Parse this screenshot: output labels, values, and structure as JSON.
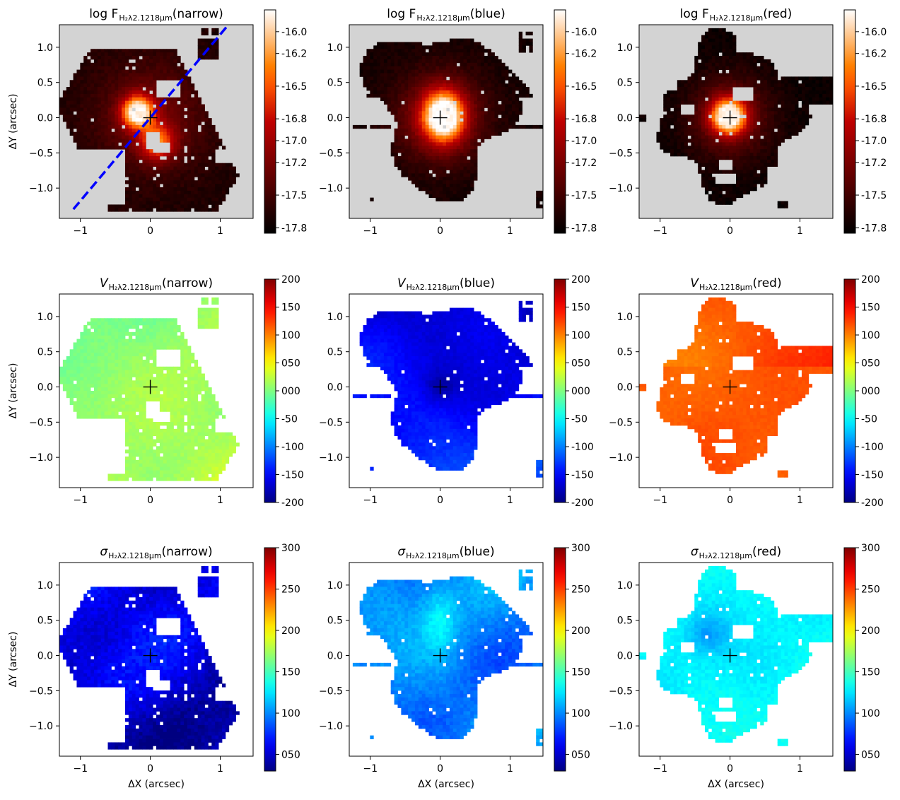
{
  "figure": {
    "xlabel": "ΔX (arcsec)",
    "ylabel": "ΔY (arcsec)",
    "x_range": [
      -1.3,
      1.47
    ],
    "y_range": [
      -1.43,
      1.32
    ],
    "x_ticks": [
      -1,
      0,
      1
    ],
    "y_ticks": [
      -1.0,
      -0.5,
      0.0,
      0.5,
      1.0
    ],
    "x_tick_labels": [
      "−1",
      "0",
      "1"
    ],
    "y_tick_labels": [
      "−1.0",
      "−0.5",
      "0.0",
      "0.5",
      "1.0"
    ],
    "masked_color": "#d3d3d3",
    "nucleus_marker": "+"
  },
  "chart_data": [
    {
      "type": "heatmap",
      "row": 0,
      "col": 0,
      "quantity": "flux",
      "component": "narrow",
      "title_prefix": "log F",
      "title_sub": "H₂λ2.1218μm",
      "title_suffix": "(narrow)",
      "colormap": "gist_heat",
      "clim": [
        -17.85,
        -15.8
      ],
      "colorbar_ticks": [
        -16.0,
        -16.2,
        -16.5,
        -16.8,
        -17.0,
        -17.2,
        -17.5,
        -17.8
      ],
      "colorbar_labels": [
        "-16.0",
        "-16.2",
        "-16.5",
        "-16.8",
        "-17.0",
        "-17.2",
        "-17.5",
        "-17.8"
      ],
      "overlay_line": {
        "color": "#0000ff",
        "style": "dashed",
        "from": [
          -1.1,
          -1.3
        ],
        "to": [
          1.1,
          1.3
        ]
      }
    },
    {
      "type": "heatmap",
      "row": 0,
      "col": 1,
      "quantity": "flux",
      "component": "blue",
      "title_prefix": "log F",
      "title_sub": "H₂λ2.1218μm",
      "title_suffix": "(blue)",
      "colormap": "gist_heat",
      "clim": [
        -17.85,
        -15.8
      ],
      "colorbar_ticks": [
        -16.0,
        -16.2,
        -16.5,
        -16.8,
        -17.0,
        -17.2,
        -17.5,
        -17.8
      ],
      "colorbar_labels": [
        "-16.0",
        "-16.2",
        "-16.5",
        "-16.8",
        "-17.0",
        "-17.2",
        "-17.5",
        "-17.8"
      ]
    },
    {
      "type": "heatmap",
      "row": 0,
      "col": 2,
      "quantity": "flux",
      "component": "red",
      "title_prefix": "log F",
      "title_sub": "H₂λ2.1218μm",
      "title_suffix": "(red)",
      "colormap": "gist_heat",
      "clim": [
        -17.85,
        -15.8
      ],
      "colorbar_ticks": [
        -16.0,
        -16.2,
        -16.5,
        -16.8,
        -17.0,
        -17.2,
        -17.5,
        -17.8
      ],
      "colorbar_labels": [
        "-16.0",
        "-16.2",
        "-16.5",
        "-16.8",
        "-17.0",
        "-17.2",
        "-17.5",
        "-17.8"
      ]
    },
    {
      "type": "heatmap",
      "row": 1,
      "col": 0,
      "quantity": "velocity",
      "component": "narrow",
      "title_prefix": "V",
      "title_sub": "H₂λ2.1218μm",
      "title_suffix": "(narrow)",
      "colormap": "jet",
      "clim": [
        -200,
        200
      ],
      "colorbar_ticks": [
        200,
        150,
        100,
        50,
        0,
        -50,
        -100,
        -150,
        -200
      ],
      "colorbar_labels": [
        "200",
        "150",
        "100",
        "050",
        "000",
        "-50",
        "-100",
        "-150",
        "-200"
      ]
    },
    {
      "type": "heatmap",
      "row": 1,
      "col": 1,
      "quantity": "velocity",
      "component": "blue",
      "title_prefix": "V",
      "title_sub": "H₂λ2.1218μm",
      "title_suffix": "(blue)",
      "colormap": "jet",
      "clim": [
        -200,
        200
      ],
      "colorbar_ticks": [
        200,
        150,
        100,
        50,
        0,
        -50,
        -100,
        -150,
        -200
      ],
      "colorbar_labels": [
        "200",
        "150",
        "100",
        "050",
        "000",
        "-50",
        "-100",
        "-150",
        "-200"
      ]
    },
    {
      "type": "heatmap",
      "row": 1,
      "col": 2,
      "quantity": "velocity",
      "component": "red",
      "title_prefix": "V",
      "title_sub": "H₂λ2.1218μm",
      "title_suffix": "(red)",
      "colormap": "jet",
      "clim": [
        -200,
        200
      ],
      "colorbar_ticks": [
        200,
        150,
        100,
        50,
        0,
        -50,
        -100,
        -150,
        -200
      ],
      "colorbar_labels": [
        "200",
        "150",
        "100",
        "050",
        "000",
        "-50",
        "-100",
        "-150",
        "-200"
      ]
    },
    {
      "type": "heatmap",
      "row": 2,
      "col": 0,
      "quantity": "sigma",
      "component": "narrow",
      "title_prefix": "σ",
      "title_sub": "H₂λ2.1218μm",
      "title_suffix": "(narrow)",
      "colormap": "jet",
      "clim": [
        30,
        300
      ],
      "colorbar_ticks": [
        300,
        250,
        200,
        150,
        100,
        50
      ],
      "colorbar_labels": [
        "300",
        "250",
        "200",
        "150",
        "100",
        "050"
      ]
    },
    {
      "type": "heatmap",
      "row": 2,
      "col": 1,
      "quantity": "sigma",
      "component": "blue",
      "title_prefix": "σ",
      "title_sub": "H₂λ2.1218μm",
      "title_suffix": "(blue)",
      "colormap": "jet",
      "clim": [
        30,
        300
      ],
      "colorbar_ticks": [
        300,
        250,
        200,
        150,
        100,
        50
      ],
      "colorbar_labels": [
        "300",
        "250",
        "200",
        "150",
        "100",
        "050"
      ]
    },
    {
      "type": "heatmap",
      "row": 2,
      "col": 2,
      "quantity": "sigma",
      "component": "red",
      "title_prefix": "σ",
      "title_sub": "H₂λ2.1218μm",
      "title_suffix": "(red)",
      "colormap": "jet",
      "clim": [
        30,
        300
      ],
      "colorbar_ticks": [
        300,
        250,
        200,
        150,
        100,
        50
      ],
      "colorbar_labels": [
        "300",
        "250",
        "200",
        "150",
        "100",
        "050"
      ]
    }
  ]
}
